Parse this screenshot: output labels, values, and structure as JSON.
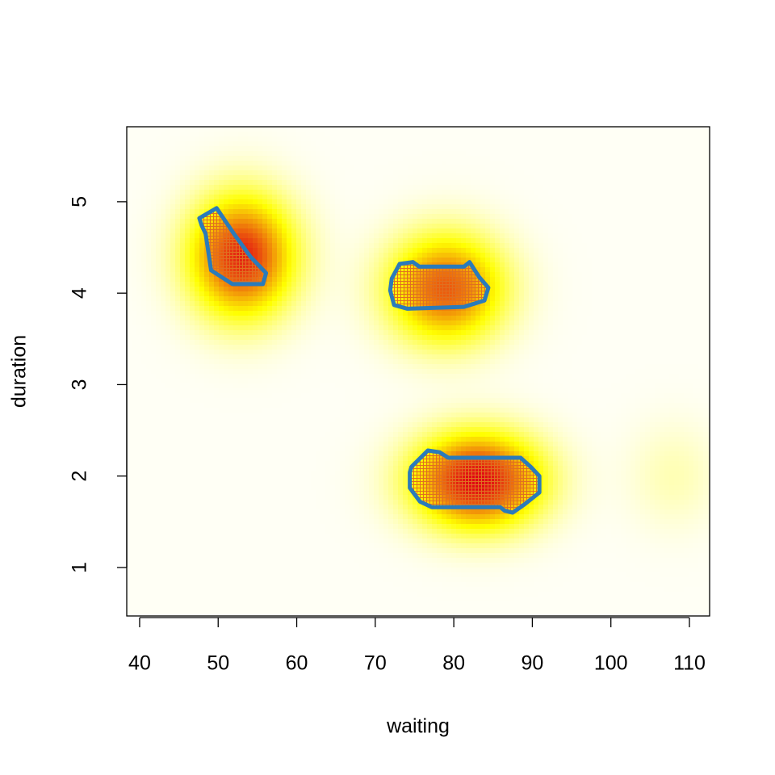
{
  "chart_data": {
    "type": "density",
    "xlabel": "waiting",
    "ylabel": "duration",
    "xlim": [
      38.36,
      112.57
    ],
    "ylim": [
      0.47,
      5.82
    ],
    "xticks": [
      40,
      50,
      60,
      70,
      80,
      90,
      100,
      110
    ],
    "yticks": [
      1,
      2,
      3,
      4,
      5
    ],
    "components": [
      {
        "x": 53,
        "y": 4.4,
        "sx": 4.5,
        "sy": 0.45,
        "weight": 1.0
      },
      {
        "x": 79,
        "y": 4.05,
        "sx": 5,
        "sy": 0.4,
        "weight": 0.85
      },
      {
        "x": 83,
        "y": 1.95,
        "sx": 5.5,
        "sy": 0.35,
        "weight": 1.1
      },
      {
        "x": 108,
        "y": 2,
        "sx": 4,
        "sy": 0.4,
        "weight": 0.1
      }
    ],
    "region_color": "#2b7bba",
    "hatch_color": "#e07020",
    "regions": [
      {
        "x": [
          47.6,
          49.8,
          52.0,
          54.1,
          56.1,
          55.7,
          51.8,
          49.1,
          48.4,
          47.9
        ],
        "y": [
          4.82,
          4.93,
          4.65,
          4.4,
          4.22,
          4.1,
          4.1,
          4.25,
          4.65,
          4.74
        ]
      },
      {
        "x": [
          72.1,
          73.1,
          74.8,
          75.6,
          81.3,
          82.0,
          83.2,
          84.4,
          83.9,
          81.3,
          74.1,
          72.4,
          71.9
        ],
        "y": [
          4.16,
          4.32,
          4.34,
          4.29,
          4.29,
          4.34,
          4.18,
          4.06,
          3.92,
          3.85,
          3.83,
          3.87,
          4.03
        ]
      },
      {
        "x": [
          74.6,
          76.7,
          78.2,
          79.3,
          88.5,
          89.8,
          90.9,
          90.9,
          89.0,
          87.5,
          86.5,
          85.9,
          77.2,
          75.7,
          74.4,
          74.4
        ],
        "y": [
          2.1,
          2.28,
          2.26,
          2.2,
          2.2,
          2.1,
          2.0,
          1.82,
          1.69,
          1.6,
          1.62,
          1.66,
          1.66,
          1.72,
          1.87,
          2.04
        ]
      }
    ]
  }
}
